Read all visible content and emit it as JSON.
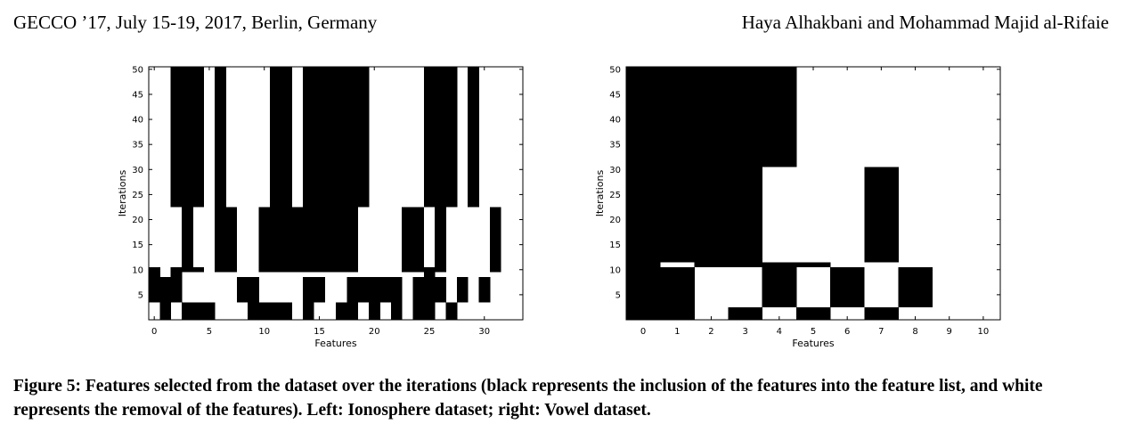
{
  "header": {
    "left": "GECCO ’17, July 15-19, 2017, Berlin, Germany",
    "right": "Haya Alhakbani and Mohammad Majid al-Rifaie"
  },
  "caption": "Figure 5: Features selected from the dataset over the iterations (black represents the inclusion of the features into the feature list, and white represents the removal of the features). Left: Ionosphere dataset; right: Vowel dataset.",
  "chart_data": [
    {
      "type": "heatmap",
      "xlabel": "Features",
      "ylabel": "Iterations",
      "xlim": [
        -0.5,
        33.5
      ],
      "ylim": [
        0,
        50.5
      ],
      "x_ticks": [
        0,
        5,
        10,
        15,
        20,
        25,
        30
      ],
      "y_ticks": [
        5,
        10,
        15,
        20,
        25,
        30,
        35,
        40,
        45,
        50
      ],
      "selected_color": "#000000",
      "removed_color": "#ffffff",
      "selected_regions": [
        {
          "feature": 0,
          "iterations": [
            8.5,
            10.5
          ]
        },
        {
          "feature": 0,
          "iterations": [
            3.5,
            8.5
          ]
        },
        {
          "feature": 1,
          "iterations": [
            3.5,
            8.5
          ]
        },
        {
          "feature": 1,
          "iterations": [
            0,
            3.5
          ]
        },
        {
          "feature": 2,
          "iterations": [
            22.5,
            50.5
          ]
        },
        {
          "feature": 2,
          "iterations": [
            3.5,
            10.5
          ]
        },
        {
          "feature": 3,
          "iterations": [
            9.5,
            50.5
          ]
        },
        {
          "feature": 3,
          "iterations": [
            0,
            3.5
          ]
        },
        {
          "feature": 4,
          "iterations": [
            22.5,
            50.5
          ]
        },
        {
          "feature": 4,
          "iterations": [
            9.5,
            10.5
          ]
        },
        {
          "feature": 4,
          "iterations": [
            0,
            3.5
          ]
        },
        {
          "feature": 5,
          "iterations": [
            0,
            3.5
          ]
        },
        {
          "feature": 6,
          "iterations": [
            9.5,
            50.5
          ]
        },
        {
          "feature": 7,
          "iterations": [
            9.5,
            22.5
          ]
        },
        {
          "feature": 8,
          "iterations": [
            3.5,
            8.5
          ]
        },
        {
          "feature": 9,
          "iterations": [
            0,
            8.5
          ]
        },
        {
          "feature": 10,
          "iterations": [
            9.5,
            22.5
          ]
        },
        {
          "feature": 10,
          "iterations": [
            0,
            3.5
          ]
        },
        {
          "feature": 11,
          "iterations": [
            9.5,
            50.5
          ]
        },
        {
          "feature": 11,
          "iterations": [
            0,
            3.5
          ]
        },
        {
          "feature": 12,
          "iterations": [
            9.5,
            50.5
          ]
        },
        {
          "feature": 12,
          "iterations": [
            0,
            3.5
          ]
        },
        {
          "feature": 13,
          "iterations": [
            9.5,
            22.5
          ]
        },
        {
          "feature": 14,
          "iterations": [
            22.5,
            50.5
          ]
        },
        {
          "feature": 14,
          "iterations": [
            9.5,
            22.5
          ]
        },
        {
          "feature": 14,
          "iterations": [
            0,
            8.5
          ]
        },
        {
          "feature": 15,
          "iterations": [
            9.5,
            50.5
          ]
        },
        {
          "feature": 15,
          "iterations": [
            3.5,
            8.5
          ]
        },
        {
          "feature": 16,
          "iterations": [
            9.5,
            50.5
          ]
        },
        {
          "feature": 17,
          "iterations": [
            9.5,
            50.5
          ]
        },
        {
          "feature": 17,
          "iterations": [
            0,
            3.5
          ]
        },
        {
          "feature": 18,
          "iterations": [
            9.5,
            50.5
          ]
        },
        {
          "feature": 18,
          "iterations": [
            0,
            8.5
          ]
        },
        {
          "feature": 19,
          "iterations": [
            22.5,
            50.5
          ]
        },
        {
          "feature": 19,
          "iterations": [
            3.5,
            8.5
          ]
        },
        {
          "feature": 20,
          "iterations": [
            3.5,
            8.5
          ]
        },
        {
          "feature": 20,
          "iterations": [
            0,
            3.5
          ]
        },
        {
          "feature": 21,
          "iterations": [
            3.5,
            8.5
          ]
        },
        {
          "feature": 22,
          "iterations": [
            3.5,
            8.5
          ]
        },
        {
          "feature": 22,
          "iterations": [
            0,
            3.5
          ]
        },
        {
          "feature": 23,
          "iterations": [
            9.5,
            22.5
          ]
        },
        {
          "feature": 24,
          "iterations": [
            9.5,
            22.5
          ]
        },
        {
          "feature": 24,
          "iterations": [
            3.5,
            8.5
          ]
        },
        {
          "feature": 24,
          "iterations": [
            0,
            3.5
          ]
        },
        {
          "feature": 25,
          "iterations": [
            22.5,
            50.5
          ]
        },
        {
          "feature": 25,
          "iterations": [
            0,
            10.5
          ]
        },
        {
          "feature": 26,
          "iterations": [
            9.5,
            50.5
          ]
        },
        {
          "feature": 26,
          "iterations": [
            3.5,
            8.5
          ]
        },
        {
          "feature": 27,
          "iterations": [
            22.5,
            50.5
          ]
        },
        {
          "feature": 27,
          "iterations": [
            0,
            3.5
          ]
        },
        {
          "feature": 28,
          "iterations": [
            3.5,
            8.5
          ]
        },
        {
          "feature": 29,
          "iterations": [
            22.5,
            50.5
          ]
        },
        {
          "feature": 30,
          "iterations": [
            3.5,
            8.5
          ]
        },
        {
          "feature": 31,
          "iterations": [
            9.5,
            22.5
          ]
        }
      ]
    },
    {
      "type": "heatmap",
      "xlabel": "Features",
      "ylabel": "Iterations",
      "xlim": [
        -0.5,
        10.5
      ],
      "ylim": [
        0,
        50.5
      ],
      "x_ticks": [
        0,
        1,
        2,
        3,
        4,
        5,
        6,
        7,
        8,
        9,
        10
      ],
      "y_ticks": [
        5,
        10,
        15,
        20,
        25,
        30,
        35,
        40,
        45,
        50
      ],
      "selected_color": "#000000",
      "removed_color": "#ffffff",
      "selected_regions": [
        {
          "feature": 0,
          "iterations": [
            0,
            50.5
          ]
        },
        {
          "feature": 1,
          "iterations": [
            11.5,
            50.5
          ]
        },
        {
          "feature": 1,
          "iterations": [
            0,
            10.5
          ]
        },
        {
          "feature": 2,
          "iterations": [
            10.5,
            50.5
          ]
        },
        {
          "feature": 3,
          "iterations": [
            10.5,
            50.5
          ]
        },
        {
          "feature": 3,
          "iterations": [
            0,
            2.5
          ]
        },
        {
          "feature": 4,
          "iterations": [
            30.5,
            50.5
          ]
        },
        {
          "feature": 4,
          "iterations": [
            2.5,
            11.5
          ]
        },
        {
          "feature": 5,
          "iterations": [
            10.5,
            11.5
          ]
        },
        {
          "feature": 5,
          "iterations": [
            0,
            2.5
          ]
        },
        {
          "feature": 6,
          "iterations": [
            2.5,
            10.5
          ]
        },
        {
          "feature": 7,
          "iterations": [
            11.5,
            30.5
          ]
        },
        {
          "feature": 7,
          "iterations": [
            0,
            2.5
          ]
        },
        {
          "feature": 8,
          "iterations": [
            2.5,
            10.5
          ]
        }
      ]
    }
  ]
}
